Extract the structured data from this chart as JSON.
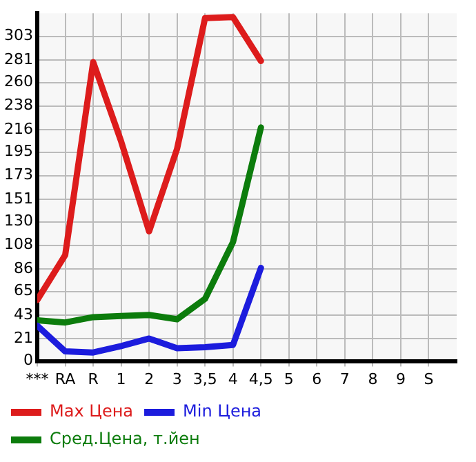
{
  "chart_data": {
    "type": "line",
    "categories": [
      "***",
      "RA",
      "R",
      "1",
      "2",
      "3",
      "3,5",
      "4",
      "4,5",
      "5",
      "6",
      "7",
      "8",
      "9",
      "S"
    ],
    "series": [
      {
        "name": "Max Цена",
        "color": "#dd1c1c",
        "values": [
          57,
          99,
          279,
          205,
          121,
          198,
          320,
          321,
          280,
          null,
          null,
          null,
          null,
          null,
          null
        ]
      },
      {
        "name": "Min Цена",
        "color": "#1c1cdd",
        "values": [
          33,
          9,
          8,
          14,
          21,
          12,
          13,
          15,
          87,
          null,
          null,
          null,
          null,
          null,
          null
        ]
      },
      {
        "name": "Сред.Цена, т.йен",
        "color": "#0c7c0c",
        "values": [
          38,
          36,
          41,
          42,
          43,
          39,
          58,
          111,
          218,
          null,
          null,
          null,
          null,
          null,
          null
        ]
      }
    ],
    "ylim": [
      0,
      324.6
    ],
    "yticks": [
      0,
      21,
      43,
      65,
      86,
      108,
      130,
      151,
      173,
      195,
      216,
      238,
      260,
      281,
      303
    ],
    "grid": true,
    "legend": "bottom",
    "marker": "none",
    "line_style": "solid"
  }
}
